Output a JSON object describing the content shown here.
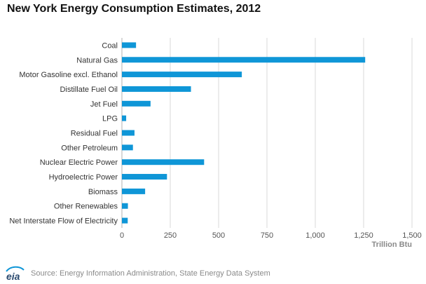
{
  "chart_data": {
    "type": "bar",
    "orientation": "horizontal",
    "title": "New York Energy Consumption Estimates, 2012",
    "categories": [
      "Coal",
      "Natural Gas",
      "Motor Gasoline excl. Ethanol",
      "Distillate Fuel Oil",
      "Jet Fuel",
      "LPG",
      "Residual Fuel",
      "Other Petroleum",
      "Nuclear Electric Power",
      "Hydroelectric Power",
      "Biomass",
      "Other Renewables",
      "Net Interstate Flow of Electricity"
    ],
    "values": [
      73,
      1258,
      620,
      357,
      148,
      22,
      65,
      57,
      425,
      233,
      120,
      31,
      30
    ],
    "xlabel": "Trillion Btu",
    "ylabel": "",
    "xlim": [
      0,
      1500
    ],
    "x_ticks": [
      0,
      250,
      500,
      750,
      1000,
      1250,
      1500
    ],
    "x_tick_labels": [
      "0",
      "250",
      "500",
      "750",
      "1,000",
      "1,250",
      "1,500"
    ],
    "grid": "vertical",
    "bar_color": "#0f96d7",
    "grid_color": "#d9d9d9"
  },
  "footer": {
    "logo_text": "eia",
    "source": "Source: Energy Information Administration, State Energy Data System"
  }
}
